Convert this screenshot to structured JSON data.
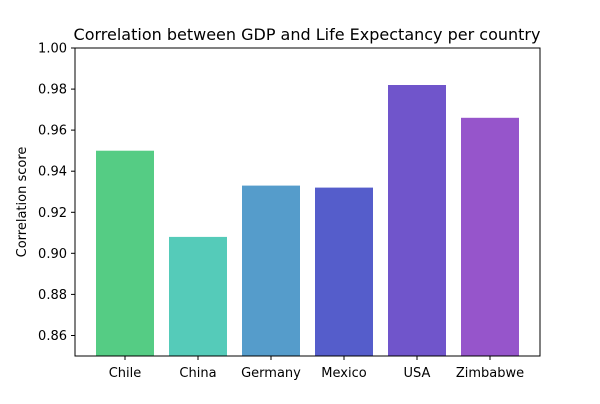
{
  "chart_data": {
    "type": "bar",
    "title": "Correlation between GDP and Life Expectancy per country",
    "xlabel": "",
    "ylabel": "Correlation score",
    "categories": [
      "Chile",
      "China",
      "Germany",
      "Mexico",
      "USA",
      "Zimbabwe"
    ],
    "values": [
      0.95,
      0.908,
      0.933,
      0.932,
      0.982,
      0.966
    ],
    "ylim": [
      0.85,
      1.0
    ],
    "yticks": [
      "0.86",
      "0.88",
      "0.90",
      "0.92",
      "0.94",
      "0.96",
      "0.98",
      "1.00"
    ],
    "grid": false,
    "legend": "none",
    "colors": [
      "#55cc84",
      "#55cbb9",
      "#559ccb",
      "#555dcb",
      "#7055cb",
      "#9655cb"
    ]
  }
}
